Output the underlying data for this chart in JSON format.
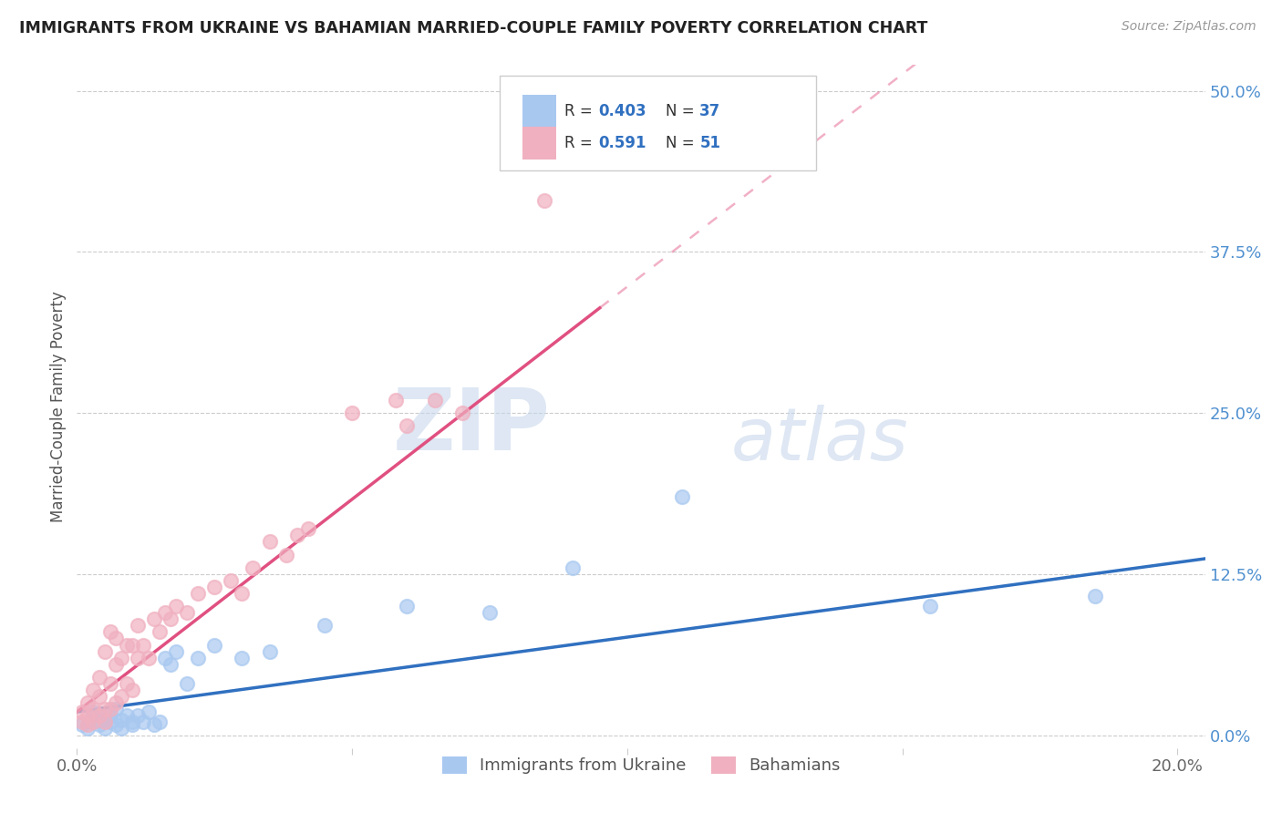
{
  "title": "IMMIGRANTS FROM UKRAINE VS BAHAMIAN MARRIED-COUPLE FAMILY POVERTY CORRELATION CHART",
  "source": "Source: ZipAtlas.com",
  "ylabel": "Married-Couple Family Poverty",
  "ytick_labels": [
    "50.0%",
    "37.5%",
    "25.0%",
    "12.5%",
    "0.0%"
  ],
  "ytick_values": [
    0.5,
    0.375,
    0.25,
    0.125,
    0.0
  ],
  "xlim": [
    0.0,
    0.205
  ],
  "ylim": [
    -0.01,
    0.52
  ],
  "legend_ukraine_R": "0.403",
  "legend_ukraine_N": "37",
  "legend_bahamian_R": "0.591",
  "legend_bahamian_N": "51",
  "ukraine_color": "#a8c8f0",
  "bahamian_color": "#f0b0c0",
  "ukraine_line_color": "#3070c0",
  "bahamian_line_color": "#e05080",
  "watermark_zip": "ZIP",
  "watermark_atlas": "atlas",
  "ukraine_scatter_x": [
    0.001,
    0.002,
    0.003,
    0.003,
    0.004,
    0.004,
    0.005,
    0.005,
    0.006,
    0.006,
    0.007,
    0.007,
    0.008,
    0.008,
    0.009,
    0.01,
    0.01,
    0.011,
    0.012,
    0.013,
    0.014,
    0.015,
    0.016,
    0.017,
    0.018,
    0.02,
    0.022,
    0.025,
    0.03,
    0.035,
    0.045,
    0.06,
    0.075,
    0.09,
    0.11,
    0.155,
    0.185
  ],
  "ukraine_scatter_y": [
    0.008,
    0.005,
    0.018,
    0.01,
    0.008,
    0.015,
    0.005,
    0.012,
    0.01,
    0.015,
    0.008,
    0.02,
    0.012,
    0.005,
    0.015,
    0.01,
    0.008,
    0.015,
    0.01,
    0.018,
    0.008,
    0.01,
    0.06,
    0.055,
    0.065,
    0.04,
    0.06,
    0.07,
    0.06,
    0.065,
    0.085,
    0.1,
    0.095,
    0.13,
    0.185,
    0.1,
    0.108
  ],
  "bahamian_scatter_x": [
    0.001,
    0.001,
    0.002,
    0.002,
    0.002,
    0.003,
    0.003,
    0.003,
    0.004,
    0.004,
    0.004,
    0.005,
    0.005,
    0.005,
    0.006,
    0.006,
    0.006,
    0.007,
    0.007,
    0.007,
    0.008,
    0.008,
    0.009,
    0.009,
    0.01,
    0.01,
    0.011,
    0.011,
    0.012,
    0.013,
    0.014,
    0.015,
    0.016,
    0.017,
    0.018,
    0.02,
    0.022,
    0.025,
    0.028,
    0.03,
    0.032,
    0.035,
    0.038,
    0.04,
    0.042,
    0.05,
    0.058,
    0.06,
    0.065,
    0.07,
    0.085
  ],
  "bahamian_scatter_y": [
    0.01,
    0.018,
    0.008,
    0.015,
    0.025,
    0.01,
    0.02,
    0.035,
    0.015,
    0.03,
    0.045,
    0.01,
    0.02,
    0.065,
    0.02,
    0.04,
    0.08,
    0.025,
    0.055,
    0.075,
    0.03,
    0.06,
    0.04,
    0.07,
    0.035,
    0.07,
    0.06,
    0.085,
    0.07,
    0.06,
    0.09,
    0.08,
    0.095,
    0.09,
    0.1,
    0.095,
    0.11,
    0.115,
    0.12,
    0.11,
    0.13,
    0.15,
    0.14,
    0.155,
    0.16,
    0.25,
    0.26,
    0.24,
    0.26,
    0.25,
    0.415
  ],
  "ukraine_line_slope": 0.58,
  "ukraine_line_intercept": 0.018,
  "bahamian_line_slope": 3.3,
  "bahamian_line_intercept": 0.018,
  "bahamian_line_solid_end": 0.095,
  "bahamian_line_dash_end": 0.205
}
